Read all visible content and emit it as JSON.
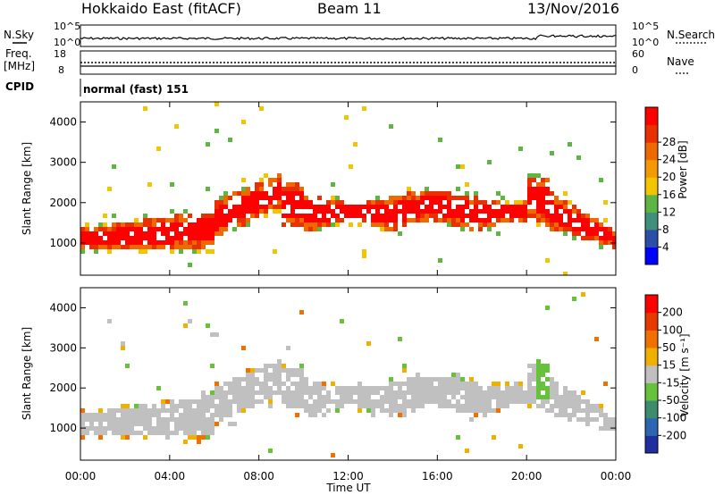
{
  "header": {
    "title": "Hokkaido East (fitACF)",
    "beam": "Beam 11",
    "date": "13/Nov/2016"
  },
  "noise_panel": {
    "left_label": "N.Sky",
    "right_label": "N.Search",
    "ticks_left": [
      "10^5",
      "10^0"
    ],
    "ticks_right": [
      "10^5",
      "10^0"
    ]
  },
  "freq_panel": {
    "left_label_1": "Freq.",
    "left_label_2": "[MHz]",
    "right_label": "Nave",
    "ticks_left": [
      "18",
      "8"
    ],
    "ticks_right": [
      "60",
      "0"
    ]
  },
  "cpid": {
    "label": "CPID",
    "value": "normal (fast) 151"
  },
  "chart_data": [
    {
      "type": "heatmap",
      "parameter": "Power",
      "ylabel": "Slant Range [km]",
      "ylim": [
        200,
        4500
      ],
      "yticks": [
        "1000",
        "2000",
        "3000",
        "4000"
      ],
      "xlabel": "Time UT",
      "xticks": [
        "00:00",
        "04:00",
        "08:00",
        "12:00",
        "16:00",
        "20:00",
        "00:00"
      ],
      "colorbar": {
        "label": "Power [dB]",
        "ticks": [
          "4",
          "8",
          "12",
          "16",
          "20",
          "24",
          "28"
        ],
        "colors": [
          "#0000ff",
          "#2b4fa8",
          "#3f8f7a",
          "#5fb544",
          "#f2c500",
          "#f29a00",
          "#ee6a00",
          "#e83000",
          "#ff0000"
        ]
      }
    },
    {
      "type": "heatmap",
      "parameter": "Velocity",
      "ylabel": "Slant Range [km]",
      "ylim": [
        200,
        4500
      ],
      "yticks": [
        "1000",
        "2000",
        "3000",
        "4000"
      ],
      "xlabel": "Time UT",
      "xticks": [
        "00:00",
        "04:00",
        "08:00",
        "12:00",
        "16:00",
        "20:00",
        "00:00"
      ],
      "colorbar": {
        "label": "Velocity [m s⁻¹]",
        "ticks": [
          "200",
          "100",
          "50",
          "15",
          "-15",
          "-50",
          "-100",
          "-200"
        ],
        "colors": [
          "#1f2f9f",
          "#2c66b0",
          "#3d8c6e",
          "#66c23a",
          "#c0c0c0",
          "#f0b000",
          "#f07000",
          "#e83a00",
          "#ff0000"
        ]
      }
    }
  ]
}
